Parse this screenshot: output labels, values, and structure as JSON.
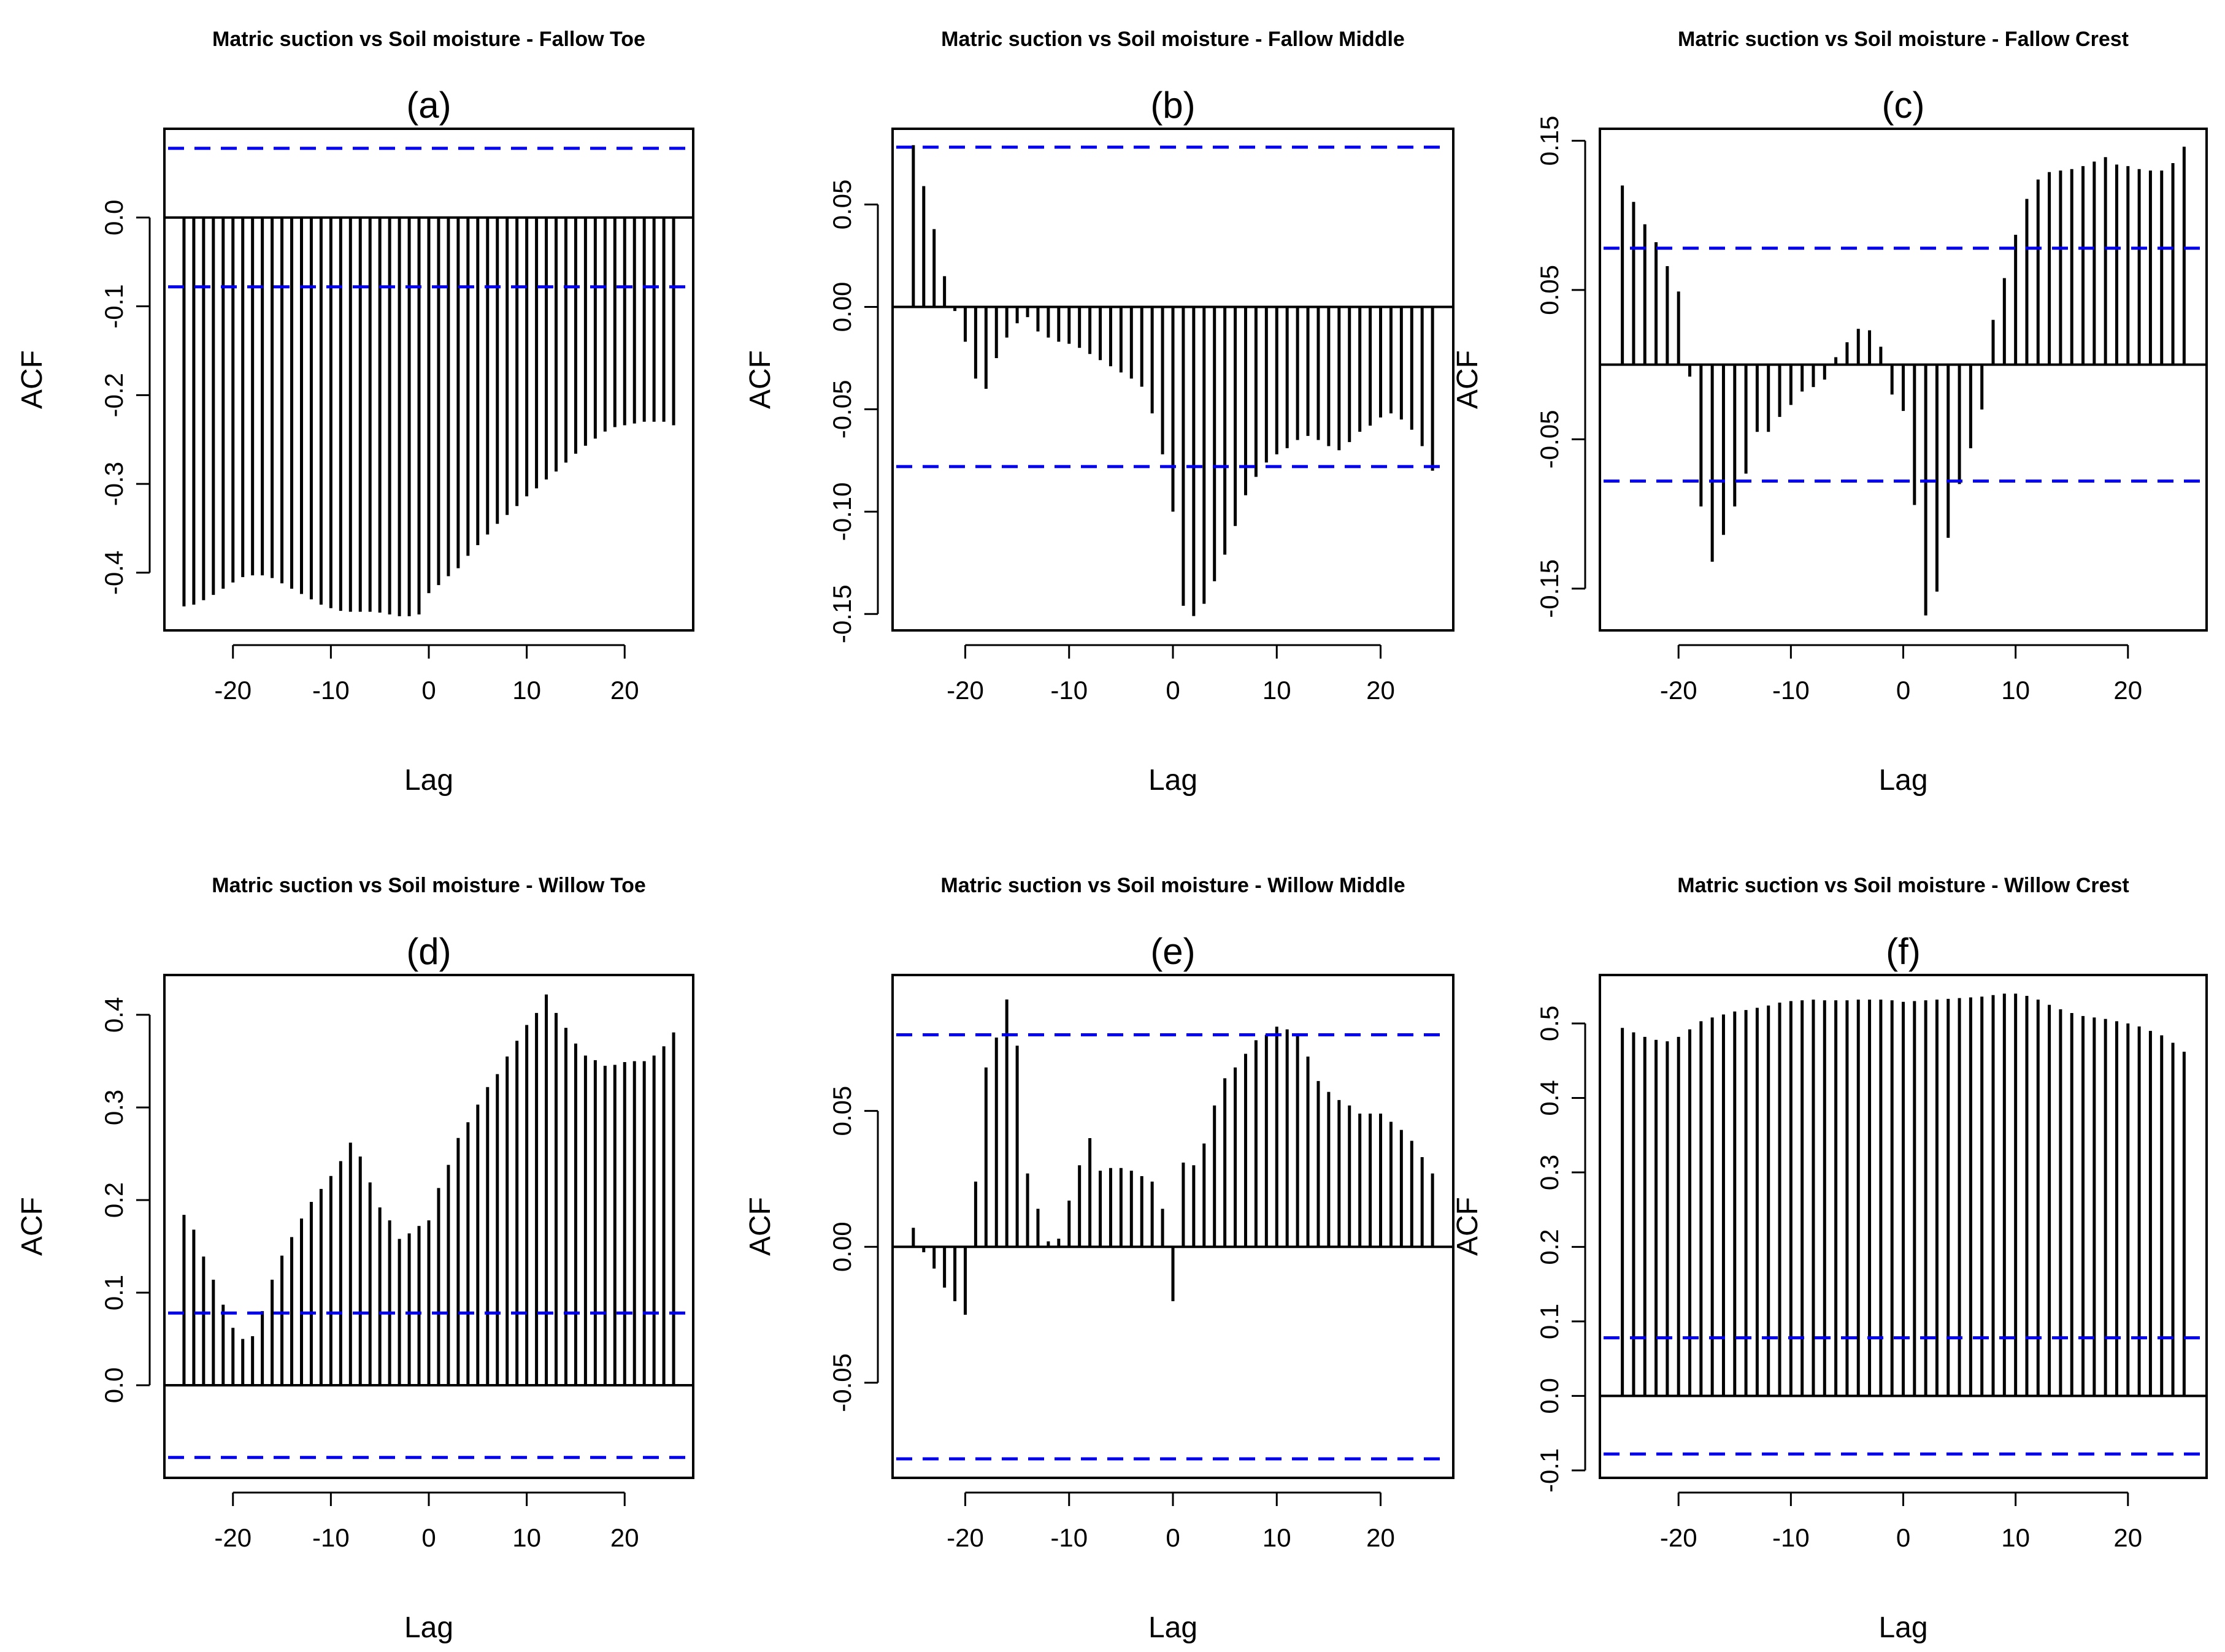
{
  "figure": {
    "description_free": true
  },
  "chart_data": [
    {
      "type": "bar",
      "title": "Matric suction vs Soil moisture - Fallow Toe",
      "subtitle": "(a)",
      "xlabel": "Lag",
      "ylabel": "ACF",
      "xlim": [
        -27,
        27
      ],
      "ylim": [
        -0.465,
        0.1
      ],
      "xticks": [
        -20,
        -10,
        0,
        10,
        20
      ],
      "xtick_labels": [
        "-20",
        "-10",
        "0",
        "10",
        "20"
      ],
      "yticks": [
        -0.4,
        -0.3,
        -0.2,
        -0.1,
        0.0
      ],
      "ytick_labels": [
        "-0.4",
        "-0.3",
        "-0.2",
        "-0.1",
        "0.0"
      ],
      "ci": 0.078,
      "ci_color": "#0000ee",
      "lags": [
        -25,
        -24,
        -23,
        -22,
        -21,
        -20,
        -19,
        -18,
        -17,
        -16,
        -15,
        -14,
        -13,
        -12,
        -11,
        -10,
        -9,
        -8,
        -7,
        -6,
        -5,
        -4,
        -3,
        -2,
        -1,
        0,
        1,
        2,
        3,
        4,
        5,
        6,
        7,
        8,
        9,
        10,
        11,
        12,
        13,
        14,
        15,
        16,
        17,
        18,
        19,
        20,
        21,
        22,
        23,
        24,
        25
      ],
      "values": [
        -0.438,
        -0.436,
        -0.431,
        -0.425,
        -0.418,
        -0.411,
        -0.405,
        -0.403,
        -0.403,
        -0.406,
        -0.412,
        -0.418,
        -0.424,
        -0.43,
        -0.436,
        -0.44,
        -0.443,
        -0.444,
        -0.444,
        -0.444,
        -0.445,
        -0.447,
        -0.449,
        -0.449,
        -0.447,
        -0.423,
        -0.414,
        -0.404,
        -0.395,
        -0.381,
        -0.369,
        -0.357,
        -0.345,
        -0.335,
        -0.325,
        -0.314,
        -0.305,
        -0.295,
        -0.286,
        -0.276,
        -0.266,
        -0.257,
        -0.249,
        -0.241,
        -0.236,
        -0.234,
        -0.232,
        -0.23,
        -0.23,
        -0.23,
        -0.234
      ]
    },
    {
      "type": "bar",
      "title": "Matric suction vs Soil moisture - Fallow Middle",
      "subtitle": "(b)",
      "xlabel": "Lag",
      "ylabel": "ACF",
      "xlim": [
        -27,
        27
      ],
      "ylim": [
        -0.158,
        0.087
      ],
      "xticks": [
        -20,
        -10,
        0,
        10,
        20
      ],
      "xtick_labels": [
        "-20",
        "-10",
        "0",
        "10",
        "20"
      ],
      "yticks": [
        -0.15,
        -0.1,
        -0.05,
        0.0,
        0.05
      ],
      "ytick_labels": [
        "-0.15",
        "-0.10",
        "-0.05",
        "0.00",
        "0.05"
      ],
      "ci": 0.078,
      "ci_color": "#0000ee",
      "lags": [
        -25,
        -24,
        -23,
        -22,
        -21,
        -20,
        -19,
        -18,
        -17,
        -16,
        -15,
        -14,
        -13,
        -12,
        -11,
        -10,
        -9,
        -8,
        -7,
        -6,
        -5,
        -4,
        -3,
        -2,
        -1,
        0,
        1,
        2,
        3,
        4,
        5,
        6,
        7,
        8,
        9,
        10,
        11,
        12,
        13,
        14,
        15,
        16,
        17,
        18,
        19,
        20,
        21,
        22,
        23,
        24,
        25
      ],
      "values": [
        0.079,
        0.059,
        0.038,
        0.015,
        -0.002,
        -0.017,
        -0.035,
        -0.04,
        -0.025,
        -0.015,
        -0.008,
        -0.005,
        -0.012,
        -0.015,
        -0.017,
        -0.018,
        -0.02,
        -0.023,
        -0.026,
        -0.029,
        -0.032,
        -0.035,
        -0.039,
        -0.052,
        -0.072,
        -0.1,
        -0.146,
        -0.151,
        -0.145,
        -0.134,
        -0.121,
        -0.107,
        -0.092,
        -0.083,
        -0.076,
        -0.072,
        -0.069,
        -0.065,
        -0.063,
        -0.065,
        -0.068,
        -0.07,
        -0.066,
        -0.061,
        -0.058,
        -0.054,
        -0.052,
        -0.055,
        -0.06,
        -0.068,
        -0.08
      ]
    },
    {
      "type": "bar",
      "title": "Matric suction vs Soil moisture - Fallow Crest",
      "subtitle": "(c)",
      "xlabel": "Lag",
      "ylabel": "ACF",
      "xlim": [
        -27,
        27
      ],
      "ylim": [
        -0.178,
        0.158
      ],
      "xticks": [
        -20,
        -10,
        0,
        10,
        20
      ],
      "xtick_labels": [
        "-20",
        "-10",
        "0",
        "10",
        "20"
      ],
      "yticks": [
        -0.15,
        -0.05,
        0.05,
        0.15
      ],
      "ytick_labels": [
        "-0.15",
        "-0.05",
        "0.05",
        "0.15"
      ],
      "ci": 0.078,
      "ci_color": "#0000ee",
      "lags": [
        -25,
        -24,
        -23,
        -22,
        -21,
        -20,
        -19,
        -18,
        -17,
        -16,
        -15,
        -14,
        -13,
        -12,
        -11,
        -10,
        -9,
        -8,
        -7,
        -6,
        -5,
        -4,
        -3,
        -2,
        -1,
        0,
        1,
        2,
        3,
        4,
        5,
        6,
        7,
        8,
        9,
        10,
        11,
        12,
        13,
        14,
        15,
        16,
        17,
        18,
        19,
        20,
        21,
        22,
        23,
        24,
        25
      ],
      "values": [
        0.12,
        0.109,
        0.094,
        0.082,
        0.066,
        0.049,
        -0.008,
        -0.095,
        -0.132,
        -0.114,
        -0.095,
        -0.073,
        -0.045,
        -0.045,
        -0.035,
        -0.027,
        -0.018,
        -0.015,
        -0.01,
        0.005,
        0.015,
        0.024,
        0.023,
        0.012,
        -0.02,
        -0.031,
        -0.094,
        -0.168,
        -0.152,
        -0.116,
        -0.08,
        -0.056,
        -0.03,
        0.03,
        0.058,
        0.087,
        0.111,
        0.124,
        0.129,
        0.13,
        0.131,
        0.133,
        0.136,
        0.139,
        0.134,
        0.133,
        0.131,
        0.13,
        0.13,
        0.135,
        0.146
      ]
    },
    {
      "type": "bar",
      "title": "Matric suction vs Soil moisture - Willow Toe",
      "subtitle": "(d)",
      "xlabel": "Lag",
      "ylabel": "ACF",
      "xlim": [
        -27,
        27
      ],
      "ylim": [
        -0.1,
        0.443
      ],
      "xticks": [
        -20,
        -10,
        0,
        10,
        20
      ],
      "xtick_labels": [
        "-20",
        "-10",
        "0",
        "10",
        "20"
      ],
      "yticks": [
        0.0,
        0.1,
        0.2,
        0.3,
        0.4
      ],
      "ytick_labels": [
        "0.0",
        "0.1",
        "0.2",
        "0.3",
        "0.4"
      ],
      "ci": 0.078,
      "ci_color": "#0000ee",
      "lags": [
        -25,
        -24,
        -23,
        -22,
        -21,
        -20,
        -19,
        -18,
        -17,
        -16,
        -15,
        -14,
        -13,
        -12,
        -11,
        -10,
        -9,
        -8,
        -7,
        -6,
        -5,
        -4,
        -3,
        -2,
        -1,
        0,
        1,
        2,
        3,
        4,
        5,
        6,
        7,
        8,
        9,
        10,
        11,
        12,
        13,
        14,
        15,
        16,
        17,
        18,
        19,
        20,
        21,
        22,
        23,
        24,
        25
      ],
      "values": [
        0.184,
        0.168,
        0.139,
        0.114,
        0.087,
        0.062,
        0.05,
        0.053,
        0.08,
        0.114,
        0.14,
        0.16,
        0.18,
        0.198,
        0.212,
        0.226,
        0.242,
        0.262,
        0.247,
        0.219,
        0.192,
        0.178,
        0.158,
        0.164,
        0.172,
        0.178,
        0.213,
        0.238,
        0.267,
        0.284,
        0.303,
        0.322,
        0.336,
        0.355,
        0.372,
        0.389,
        0.402,
        0.422,
        0.402,
        0.386,
        0.369,
        0.356,
        0.351,
        0.345,
        0.346,
        0.349,
        0.35,
        0.35,
        0.356,
        0.366,
        0.381
      ]
    },
    {
      "type": "bar",
      "title": "Matric suction vs Soil moisture - Willow Middle",
      "subtitle": "(e)",
      "xlabel": "Lag",
      "ylabel": "ACF",
      "xlim": [
        -27,
        27
      ],
      "ylim": [
        -0.085,
        0.1
      ],
      "xticks": [
        -20,
        -10,
        0,
        10,
        20
      ],
      "xtick_labels": [
        "-20",
        "-10",
        "0",
        "10",
        "20"
      ],
      "yticks": [
        -0.05,
        0.0,
        0.05
      ],
      "ytick_labels": [
        "-0.05",
        "0.00",
        "0.05"
      ],
      "ci": 0.078,
      "ci_color": "#0000ee",
      "lags": [
        -25,
        -24,
        -23,
        -22,
        -21,
        -20,
        -19,
        -18,
        -17,
        -16,
        -15,
        -14,
        -13,
        -12,
        -11,
        -10,
        -9,
        -8,
        -7,
        -6,
        -5,
        -4,
        -3,
        -2,
        -1,
        0,
        1,
        2,
        3,
        4,
        5,
        6,
        7,
        8,
        9,
        10,
        11,
        12,
        13,
        14,
        15,
        16,
        17,
        18,
        19,
        20,
        21,
        22,
        23,
        24,
        25
      ],
      "values": [
        0.007,
        -0.002,
        -0.008,
        -0.015,
        -0.02,
        -0.025,
        0.024,
        0.066,
        0.077,
        0.091,
        0.074,
        0.027,
        0.014,
        0.002,
        0.003,
        0.017,
        0.03,
        0.04,
        0.028,
        0.029,
        0.029,
        0.028,
        0.026,
        0.024,
        0.014,
        -0.02,
        0.031,
        0.03,
        0.038,
        0.052,
        0.062,
        0.066,
        0.071,
        0.076,
        0.078,
        0.081,
        0.08,
        0.078,
        0.07,
        0.061,
        0.057,
        0.054,
        0.052,
        0.049,
        0.049,
        0.049,
        0.046,
        0.043,
        0.039,
        0.033,
        0.027
      ]
    },
    {
      "type": "bar",
      "title": "Matric suction vs Soil moisture - Willow Crest",
      "subtitle": "(f)",
      "xlabel": "Lag",
      "ylabel": "ACF",
      "xlim": [
        -27,
        27
      ],
      "ylim": [
        -0.11,
        0.565
      ],
      "xticks": [
        -20,
        -10,
        0,
        10,
        20
      ],
      "xtick_labels": [
        "-20",
        "-10",
        "0",
        "10",
        "20"
      ],
      "yticks": [
        -0.1,
        0.0,
        0.1,
        0.2,
        0.3,
        0.4,
        0.5
      ],
      "ytick_labels": [
        "-0.1",
        "0.0",
        "0.1",
        "0.2",
        "0.3",
        "0.4",
        "0.5"
      ],
      "ci": 0.078,
      "ci_color": "#0000ee",
      "lags": [
        -25,
        -24,
        -23,
        -22,
        -21,
        -20,
        -19,
        -18,
        -17,
        -16,
        -15,
        -14,
        -13,
        -12,
        -11,
        -10,
        -9,
        -8,
        -7,
        -6,
        -5,
        -4,
        -3,
        -2,
        -1,
        0,
        1,
        2,
        3,
        4,
        5,
        6,
        7,
        8,
        9,
        10,
        11,
        12,
        13,
        14,
        15,
        16,
        17,
        18,
        19,
        20,
        21,
        22,
        23,
        24,
        25
      ],
      "values": [
        0.494,
        0.488,
        0.482,
        0.478,
        0.476,
        0.482,
        0.492,
        0.503,
        0.508,
        0.512,
        0.516,
        0.518,
        0.521,
        0.524,
        0.528,
        0.53,
        0.531,
        0.532,
        0.531,
        0.531,
        0.531,
        0.532,
        0.532,
        0.532,
        0.531,
        0.529,
        0.53,
        0.531,
        0.532,
        0.533,
        0.534,
        0.535,
        0.536,
        0.538,
        0.54,
        0.54,
        0.537,
        0.532,
        0.525,
        0.519,
        0.514,
        0.51,
        0.508,
        0.506,
        0.503,
        0.5,
        0.496,
        0.49,
        0.484,
        0.474,
        0.462
      ]
    }
  ]
}
